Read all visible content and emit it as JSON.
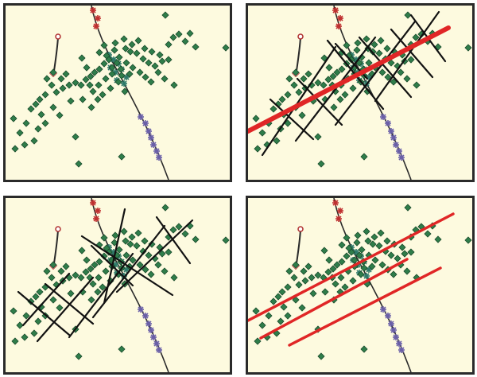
{
  "colors": {
    "background": "#fdfadf",
    "frame": "#2a2a2a",
    "diamond_fill": "#2f7d4a",
    "diamond_stroke": "#184a2a",
    "well_stroke": "#2a2a2a",
    "hollow_diamond": "#e8f0e6",
    "red_cross": "#c03030",
    "blue_cross": "#6a5fa8",
    "teal_cross": "#2e7a6a",
    "black_line": "#111111",
    "red_line": "#e02626"
  },
  "panels": [
    {
      "id": "p1",
      "overlay": "none"
    },
    {
      "id": "p2",
      "overlay": "orthogonal-black-lines-with-red-axis"
    },
    {
      "id": "p3",
      "overlay": "orthogonal-black-lines"
    },
    {
      "id": "p4",
      "overlay": "parallel-red-lines"
    }
  ]
}
